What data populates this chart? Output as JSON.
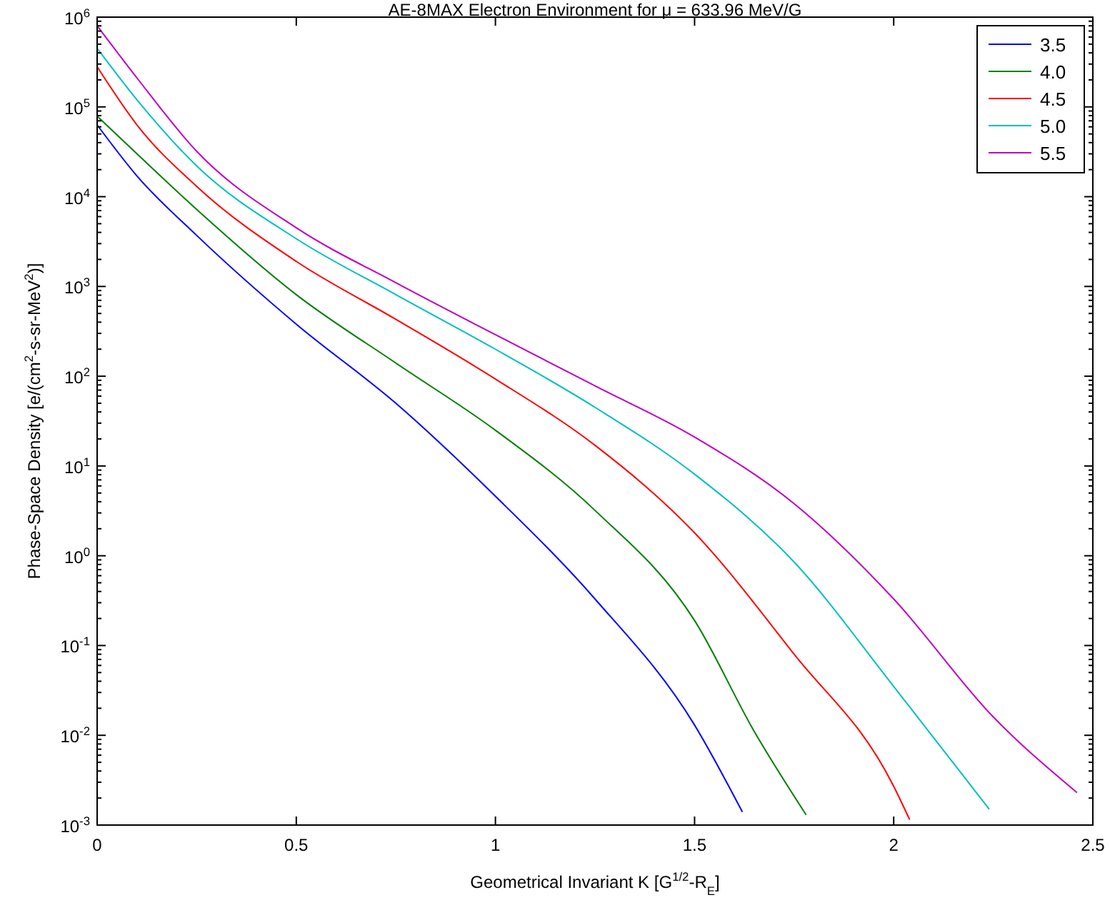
{
  "chart_data": {
    "type": "line",
    "title": "AE-8MAX Electron Environment for μ = 633.96 MeV/G",
    "xlabel": "Geometrical Invariant K [G$^{1/2}$-R$_{E}$]",
    "ylabel": "Phase-Space Density [e/(cm$^{2}$-s-sr-MeV$^{2}$)]",
    "log": "y",
    "grid": false,
    "legend": "top right",
    "line_style": "solid",
    "xlim": [
      0,
      2.5
    ],
    "xticks": [
      0,
      0.5,
      1,
      1.5,
      2,
      2.5
    ],
    "ylim": [
      0.001,
      1000000
    ],
    "yticks": [
      {
        "value": 0.001,
        "label": "10$^{-3}$"
      },
      {
        "value": 0.01,
        "label": "10$^{-2}$"
      },
      {
        "value": 0.1,
        "label": "10$^{-1}$"
      },
      {
        "value": 1,
        "label": "10$^{0}$"
      },
      {
        "value": 10,
        "label": "10$^{1}$"
      },
      {
        "value": 100,
        "label": "10$^{2}$"
      },
      {
        "value": 1000,
        "label": "10$^{3}$"
      },
      {
        "value": 10000,
        "label": "10$^{4}$"
      },
      {
        "value": 100000,
        "label": "10$^{5}$"
      },
      {
        "value": 1000000,
        "label": "10$^{6}$"
      }
    ],
    "series": [
      {
        "name": "3.5",
        "color": "#0000ff",
        "x": [
          0,
          0.1,
          0.25,
          0.5,
          0.75,
          1,
          1.25,
          1.5,
          1.62
        ],
        "values": [
          63000,
          17000,
          3700,
          380,
          50,
          4.6,
          0.33,
          0.013,
          0.0014
        ]
      },
      {
        "name": "4.0",
        "color": "#008000",
        "x": [
          0,
          0.1,
          0.25,
          0.5,
          0.75,
          1,
          1.25,
          1.5,
          1.65,
          1.78
        ],
        "values": [
          79000,
          30000,
          7200,
          810,
          140,
          25,
          3.2,
          0.19,
          0.011,
          0.0013
        ]
      },
      {
        "name": "4.5",
        "color": "#ff0000",
        "x": [
          0,
          0.1,
          0.25,
          0.5,
          0.75,
          1,
          1.25,
          1.5,
          1.75,
          2,
          2.04
        ],
        "values": [
          280000,
          63000,
          13000,
          1900,
          430,
          93,
          17,
          1.8,
          0.08,
          0.0027,
          0.00115
        ]
      },
      {
        "name": "5.0",
        "color": "#00bfbf",
        "x": [
          0,
          0.1,
          0.25,
          0.5,
          0.75,
          1,
          1.25,
          1.5,
          1.75,
          2,
          2.24
        ],
        "values": [
          450000,
          120000,
          22000,
          3400,
          810,
          200,
          45,
          8.1,
          0.85,
          0.035,
          0.0015
        ]
      },
      {
        "name": "5.5",
        "color": "#bf00bf",
        "x": [
          0,
          0.1,
          0.25,
          0.5,
          0.75,
          1,
          1.25,
          1.5,
          1.75,
          2,
          2.25,
          2.46
        ],
        "values": [
          800000,
          210000,
          32000,
          4500,
          1100,
          290,
          78,
          21,
          3.8,
          0.33,
          0.016,
          0.0023
        ]
      }
    ]
  }
}
